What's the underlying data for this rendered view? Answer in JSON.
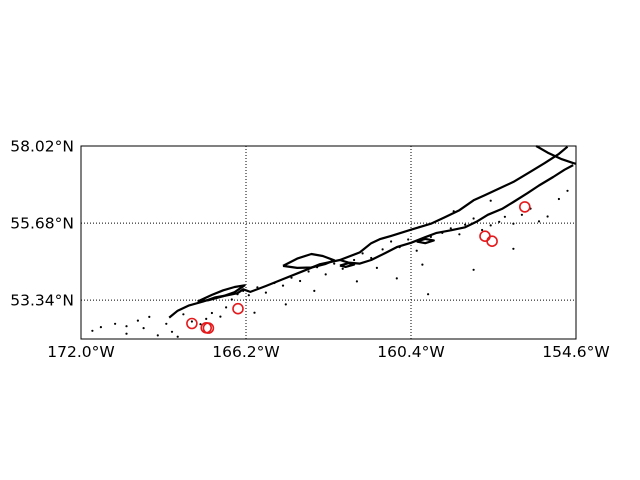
{
  "map": {
    "lon_range": [
      -172.0,
      -154.6
    ],
    "lat_range": [
      52.16,
      58.02
    ],
    "grid": "dotted",
    "lon_ticks": [
      {
        "value": -172.0,
        "label": "172.0°W"
      },
      {
        "value": -166.2,
        "label": "166.2°W"
      },
      {
        "value": -160.4,
        "label": "160.4°W"
      },
      {
        "value": -154.6,
        "label": "154.6°W"
      }
    ],
    "lat_ticks": [
      {
        "value": 58.02,
        "label": "58.02°N"
      },
      {
        "value": 55.68,
        "label": "55.68°N"
      },
      {
        "value": 53.34,
        "label": "53.34°N"
      }
    ],
    "coastline_color": "#000000",
    "event_color": "#000000",
    "highlight_color": "#e41a1c",
    "coastlines": [
      {
        "name": "alaska-peninsula-north-coast",
        "points": [
          [
            -168.9,
            52.81
          ],
          [
            -168.6,
            53.02
          ],
          [
            -168.2,
            53.18
          ],
          [
            -167.7,
            53.3
          ],
          [
            -167.3,
            53.42
          ],
          [
            -166.9,
            53.48
          ],
          [
            -166.5,
            53.55
          ],
          [
            -166.3,
            53.67
          ],
          [
            -166.05,
            53.59
          ],
          [
            -165.5,
            53.77
          ],
          [
            -164.9,
            53.98
          ],
          [
            -164.2,
            54.22
          ],
          [
            -163.6,
            54.43
          ],
          [
            -162.9,
            54.56
          ],
          [
            -162.2,
            54.79
          ],
          [
            -161.8,
            55.07
          ],
          [
            -161.5,
            55.19
          ],
          [
            -161.1,
            55.29
          ],
          [
            -160.4,
            55.48
          ],
          [
            -159.7,
            55.66
          ],
          [
            -159.2,
            55.86
          ],
          [
            -158.7,
            56.07
          ],
          [
            -158.2,
            56.37
          ],
          [
            -157.8,
            56.53
          ],
          [
            -157.3,
            56.73
          ],
          [
            -156.8,
            56.93
          ],
          [
            -156.2,
            57.24
          ],
          [
            -155.7,
            57.5
          ],
          [
            -155.2,
            57.78
          ],
          [
            -154.9,
            58.0
          ]
        ]
      },
      {
        "name": "alaska-peninsula-south-coast",
        "points": [
          [
            -162.9,
            54.56
          ],
          [
            -162.6,
            54.48
          ],
          [
            -162.2,
            54.45
          ],
          [
            -161.8,
            54.56
          ],
          [
            -161.3,
            54.77
          ],
          [
            -160.9,
            54.95
          ],
          [
            -160.4,
            55.08
          ],
          [
            -159.9,
            55.25
          ],
          [
            -159.5,
            55.38
          ],
          [
            -159.0,
            55.46
          ],
          [
            -158.5,
            55.55
          ],
          [
            -158.1,
            55.72
          ],
          [
            -157.7,
            55.93
          ],
          [
            -157.2,
            56.11
          ],
          [
            -156.8,
            56.32
          ],
          [
            -156.3,
            56.59
          ],
          [
            -155.9,
            56.82
          ],
          [
            -155.4,
            57.08
          ],
          [
            -155.0,
            57.3
          ],
          [
            -154.7,
            57.44
          ]
        ]
      },
      {
        "name": "upper-peninsula-coast",
        "points": [
          [
            -156.0,
            58.02
          ],
          [
            -155.6,
            57.82
          ],
          [
            -155.1,
            57.62
          ],
          [
            -154.7,
            57.5
          ],
          [
            -154.6,
            57.48
          ]
        ]
      },
      {
        "name": "unimak-island",
        "points": [
          [
            -164.9,
            54.38
          ],
          [
            -164.4,
            54.6
          ],
          [
            -163.9,
            54.74
          ],
          [
            -163.5,
            54.68
          ],
          [
            -163.1,
            54.55
          ],
          [
            -163.4,
            54.44
          ],
          [
            -163.9,
            54.33
          ],
          [
            -164.4,
            54.32
          ],
          [
            -164.9,
            54.38
          ]
        ]
      },
      {
        "name": "unalaska-island",
        "points": [
          [
            -167.9,
            53.3
          ],
          [
            -167.4,
            53.5
          ],
          [
            -167.0,
            53.64
          ],
          [
            -166.6,
            53.74
          ],
          [
            -166.25,
            53.79
          ],
          [
            -166.6,
            53.58
          ],
          [
            -167.0,
            53.46
          ],
          [
            -167.5,
            53.34
          ],
          [
            -167.9,
            53.3
          ]
        ]
      },
      {
        "name": "shumagin-islands",
        "points": [
          [
            -160.2,
            55.12
          ],
          [
            -159.9,
            55.2
          ],
          [
            -159.6,
            55.15
          ],
          [
            -159.9,
            55.07
          ],
          [
            -160.2,
            55.12
          ]
        ]
      },
      {
        "name": "sanak-islands",
        "points": [
          [
            -162.9,
            54.39
          ],
          [
            -162.6,
            54.46
          ],
          [
            -162.4,
            54.42
          ],
          [
            -162.7,
            54.35
          ],
          [
            -162.9,
            54.39
          ]
        ]
      }
    ],
    "events": [
      [
        -171.6,
        52.41
      ],
      [
        -171.3,
        52.52
      ],
      [
        -170.8,
        52.62
      ],
      [
        -170.4,
        52.55
      ],
      [
        -170.0,
        52.72
      ],
      [
        -169.8,
        52.49
      ],
      [
        -169.6,
        52.83
      ],
      [
        -169.3,
        52.27
      ],
      [
        -169.0,
        52.62
      ],
      [
        -168.8,
        52.38
      ],
      [
        -168.4,
        52.91
      ],
      [
        -168.1,
        52.69
      ],
      [
        -167.8,
        52.61
      ],
      [
        -167.6,
        52.77
      ],
      [
        -167.4,
        52.95
      ],
      [
        -167.1,
        52.84
      ],
      [
        -166.9,
        53.12
      ],
      [
        -166.7,
        53.36
      ],
      [
        -166.5,
        53.52
      ],
      [
        -166.3,
        53.62
      ],
      [
        -166.1,
        53.49
      ],
      [
        -165.8,
        53.73
      ],
      [
        -165.5,
        53.57
      ],
      [
        -165.2,
        53.86
      ],
      [
        -164.9,
        53.78
      ],
      [
        -164.6,
        54.02
      ],
      [
        -164.3,
        53.92
      ],
      [
        -164.0,
        54.21
      ],
      [
        -163.7,
        54.34
      ],
      [
        -163.4,
        54.12
      ],
      [
        -163.1,
        54.45
      ],
      [
        -162.8,
        54.29
      ],
      [
        -162.4,
        54.56
      ],
      [
        -162.1,
        54.76
      ],
      [
        -161.8,
        54.62
      ],
      [
        -161.4,
        54.88
      ],
      [
        -161.1,
        55.12
      ],
      [
        -160.8,
        54.95
      ],
      [
        -160.5,
        55.18
      ],
      [
        -160.2,
        54.84
      ],
      [
        -160.0,
        54.42
      ],
      [
        -159.7,
        55.26
      ],
      [
        -159.3,
        55.38
      ],
      [
        -159.0,
        55.52
      ],
      [
        -158.7,
        55.34
      ],
      [
        -158.5,
        55.63
      ],
      [
        -158.2,
        55.82
      ],
      [
        -157.9,
        55.47
      ],
      [
        -157.6,
        55.61
      ],
      [
        -157.3,
        55.72
      ],
      [
        -157.1,
        55.87
      ],
      [
        -156.8,
        55.66
      ],
      [
        -156.5,
        55.93
      ],
      [
        -156.2,
        56.12
      ],
      [
        -155.9,
        55.73
      ],
      [
        -155.6,
        55.88
      ],
      [
        -155.2,
        56.41
      ],
      [
        -154.9,
        56.66
      ],
      [
        -160.9,
        54.0
      ],
      [
        -159.8,
        53.52
      ],
      [
        -158.2,
        54.26
      ],
      [
        -156.8,
        54.9
      ],
      [
        -162.3,
        53.91
      ],
      [
        -164.8,
        53.21
      ],
      [
        -165.9,
        52.96
      ],
      [
        -168.6,
        52.23
      ],
      [
        -170.4,
        52.32
      ],
      [
        -157.6,
        56.36
      ],
      [
        -158.9,
        56.04
      ],
      [
        -161.6,
        54.32
      ],
      [
        -163.8,
        53.62
      ],
      [
        -160.1,
        55.56
      ]
    ],
    "highlighted_events": [
      [
        -168.1,
        52.63
      ],
      [
        -167.6,
        52.5
      ],
      [
        -167.52,
        52.49
      ],
      [
        -166.48,
        53.08
      ],
      [
        -157.8,
        55.28
      ],
      [
        -157.55,
        55.13
      ],
      [
        -156.4,
        56.17
      ]
    ]
  }
}
